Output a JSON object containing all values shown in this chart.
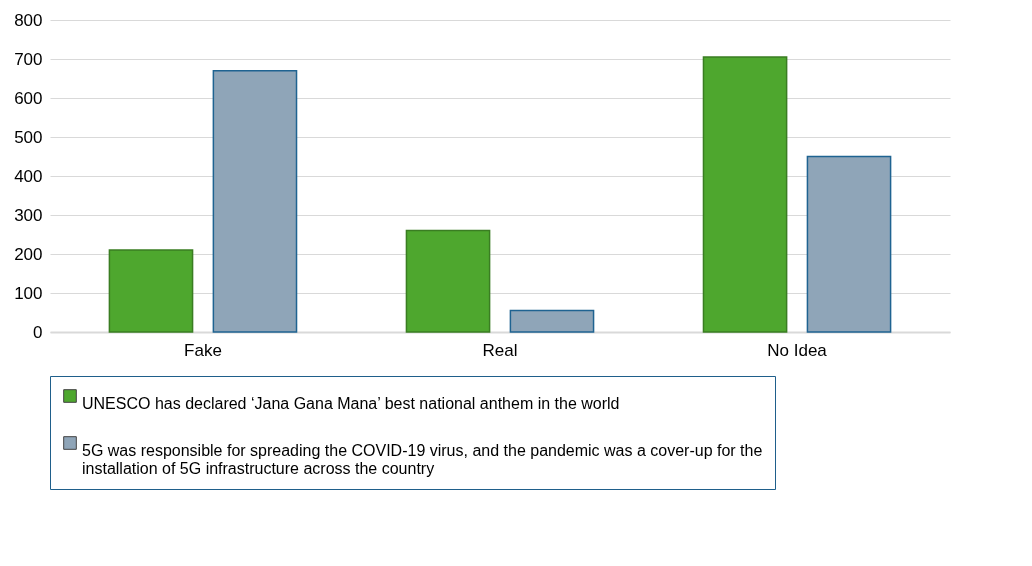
{
  "chart_data": {
    "type": "bar",
    "categories": [
      "Fake",
      "Real",
      "No Idea"
    ],
    "series": [
      {
        "name": "UNESCO has declared ‘Jana Gana Mana’ best national anthem in the world",
        "color": "#4ea72e",
        "values": [
          210,
          260,
          705
        ]
      },
      {
        "name": "5G was responsible for spreading the COVID-19 virus, and the pandemic was a cover-up for the installation of 5G infrastructure across the country",
        "color": "#8fa5b8",
        "values": [
          670,
          55,
          450
        ]
      }
    ],
    "ylim": [
      0,
      800
    ],
    "yticks": [
      0,
      100,
      200,
      300,
      400,
      500,
      600,
      700,
      800
    ],
    "grid": "y",
    "legend": "bottom"
  }
}
